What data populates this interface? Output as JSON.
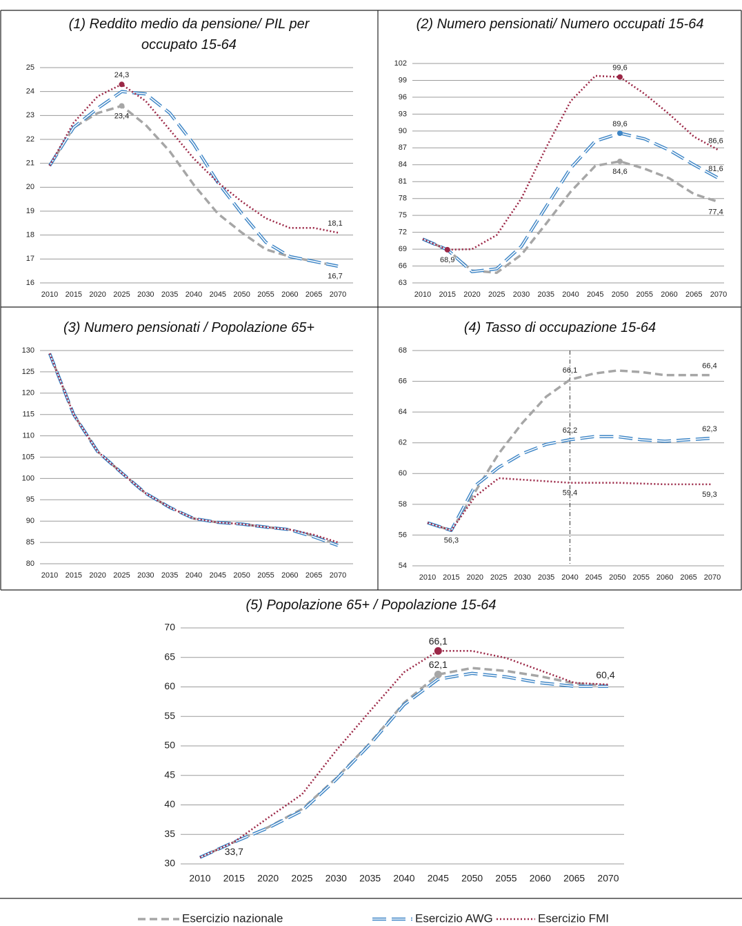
{
  "legend": {
    "items": [
      {
        "name": "Esercizio nazionale",
        "color": "#a6a6a6",
        "style": "dashed"
      },
      {
        "name": "Esercizio AWG",
        "color": "#3d85c6",
        "style": "double-dashed"
      },
      {
        "name": "Esercizio FMI",
        "color": "#9b2746",
        "style": "dotted"
      }
    ]
  },
  "chart_data": [
    {
      "type": "line",
      "title": "(1) Reddito medio da pensione/ PIL per occupato 15-64",
      "categories": [
        "2010",
        "2015",
        "2020",
        "2025",
        "2030",
        "2035",
        "2040",
        "2045",
        "2050",
        "2055",
        "2060",
        "2065",
        "2070"
      ],
      "ylim": [
        16,
        25
      ],
      "yticks": [
        16,
        17,
        18,
        19,
        20,
        21,
        22,
        23,
        24,
        25
      ],
      "grid": true,
      "series": [
        {
          "values": [
            20.9,
            22.5,
            23.1,
            23.4,
            22.6,
            21.5,
            20.1,
            18.9,
            18.1,
            17.4,
            17.1,
            16.9,
            16.7
          ],
          "value_labels": [
            null,
            null,
            null,
            "23,4",
            null,
            null,
            null,
            null,
            null,
            null,
            null,
            null,
            null
          ],
          "markers": [
            3
          ]
        },
        {
          "values": [
            20.9,
            22.5,
            23.3,
            24.0,
            23.9,
            23.1,
            21.8,
            20.2,
            18.9,
            17.7,
            17.1,
            16.9,
            16.7
          ],
          "value_labels": [
            null,
            null,
            null,
            null,
            null,
            null,
            null,
            null,
            null,
            null,
            null,
            null,
            "16,7"
          ],
          "markers": []
        },
        {
          "values": [
            20.9,
            22.7,
            23.8,
            24.3,
            23.6,
            22.4,
            21.2,
            20.2,
            19.4,
            18.7,
            18.3,
            18.3,
            18.1
          ],
          "value_labels": [
            null,
            null,
            null,
            "24,3",
            null,
            null,
            null,
            null,
            null,
            null,
            null,
            null,
            "18,1"
          ],
          "markers": [
            3
          ]
        }
      ]
    },
    {
      "type": "line",
      "title": "(2) Numero pensionati/ Numero occupati 15-64",
      "categories": [
        "2010",
        "2015",
        "2020",
        "2025",
        "2030",
        "2035",
        "2040",
        "2045",
        "2050",
        "2055",
        "2060",
        "2065",
        "2070"
      ],
      "ylim": [
        63,
        102
      ],
      "yticks": [
        63,
        66,
        69,
        72,
        75,
        78,
        81,
        84,
        87,
        90,
        93,
        96,
        99,
        102
      ],
      "grid": true,
      "series": [
        {
          "values": [
            70.8,
            68.9,
            65.2,
            64.8,
            68.0,
            73.5,
            79.2,
            83.8,
            84.6,
            83.3,
            81.6,
            78.8,
            77.4
          ],
          "value_labels": [
            null,
            null,
            null,
            null,
            null,
            null,
            null,
            null,
            "84,6",
            null,
            null,
            null,
            "77,4"
          ],
          "markers": [
            8
          ]
        },
        {
          "values": [
            70.8,
            68.9,
            65.0,
            65.5,
            69.5,
            76.5,
            83.4,
            88.2,
            89.6,
            88.6,
            86.6,
            84.0,
            81.6
          ],
          "value_labels": [
            null,
            null,
            null,
            null,
            null,
            null,
            null,
            null,
            "89,6",
            null,
            null,
            null,
            "81,6"
          ],
          "markers": [
            8
          ]
        },
        {
          "values": [
            70.8,
            68.9,
            69.0,
            71.5,
            78.0,
            87.0,
            95.3,
            99.8,
            99.6,
            96.6,
            93.0,
            89.0,
            86.6
          ],
          "value_labels": [
            null,
            "68,9",
            null,
            null,
            null,
            null,
            null,
            null,
            "99,6",
            null,
            null,
            null,
            "86,6"
          ],
          "markers": [
            1,
            8
          ]
        }
      ]
    },
    {
      "type": "line",
      "title": "(3) Numero pensionati / Popolazione 65+",
      "categories": [
        "2010",
        "2015",
        "2020",
        "2025",
        "2030",
        "2035",
        "2040",
        "2045",
        "2050",
        "2055",
        "2060",
        "2065",
        "2070"
      ],
      "ylim": [
        80,
        130
      ],
      "yticks": [
        80,
        85,
        90,
        95,
        100,
        105,
        110,
        115,
        120,
        125,
        130
      ],
      "grid": true,
      "series": [
        {
          "values": [
            129.3,
            115.0,
            106.3,
            101.3,
            96.5,
            93.2,
            90.6,
            89.7,
            89.3,
            88.6,
            88.0,
            86.5,
            84.5
          ],
          "value_labels": [
            null,
            null,
            null,
            null,
            null,
            null,
            null,
            null,
            null,
            null,
            null,
            null,
            null
          ],
          "markers": []
        },
        {
          "values": [
            129.3,
            115.0,
            106.3,
            101.3,
            96.5,
            93.2,
            90.6,
            89.7,
            89.3,
            88.6,
            88.0,
            86.3,
            84.3
          ],
          "value_labels": [
            null,
            null,
            null,
            null,
            null,
            null,
            null,
            null,
            null,
            null,
            null,
            null,
            null
          ],
          "markers": []
        },
        {
          "values": [
            129.3,
            115.0,
            106.3,
            101.3,
            96.5,
            93.2,
            90.6,
            89.7,
            89.3,
            88.6,
            88.0,
            86.8,
            85.0
          ],
          "value_labels": [
            null,
            null,
            null,
            null,
            null,
            null,
            null,
            null,
            null,
            null,
            null,
            null,
            null
          ],
          "markers": []
        }
      ]
    },
    {
      "type": "line",
      "title": "(4) Tasso di occupazione 15-64",
      "categories": [
        "2010",
        "2015",
        "2020",
        "2025",
        "2030",
        "2035",
        "2040",
        "2045",
        "2050",
        "2055",
        "2060",
        "2065",
        "2070"
      ],
      "ylim": [
        54,
        68
      ],
      "yticks": [
        54,
        56,
        58,
        60,
        62,
        64,
        66,
        68
      ],
      "grid": true,
      "vline": "2040",
      "series": [
        {
          "values": [
            56.8,
            56.3,
            58.8,
            61.3,
            63.3,
            65.0,
            66.1,
            66.5,
            66.7,
            66.6,
            66.4,
            66.4,
            66.4
          ],
          "value_labels": [
            null,
            "56,3",
            null,
            null,
            null,
            null,
            "66,1",
            null,
            null,
            null,
            null,
            null,
            "66,4"
          ],
          "markers": []
        },
        {
          "values": [
            56.8,
            56.3,
            59.2,
            60.4,
            61.3,
            61.9,
            62.2,
            62.4,
            62.4,
            62.2,
            62.1,
            62.2,
            62.3
          ],
          "value_labels": [
            null,
            null,
            null,
            null,
            null,
            null,
            "62,2",
            null,
            null,
            null,
            null,
            null,
            "62,3"
          ],
          "markers": []
        },
        {
          "values": [
            56.8,
            56.3,
            58.5,
            59.7,
            59.6,
            59.5,
            59.4,
            59.4,
            59.4,
            59.35,
            59.3,
            59.3,
            59.3
          ],
          "value_labels": [
            null,
            null,
            null,
            null,
            null,
            null,
            "59,4",
            null,
            null,
            null,
            null,
            null,
            "59,3"
          ],
          "markers": []
        }
      ]
    },
    {
      "type": "line",
      "title": "(5) Popolazione 65+ / Popolazione 15-64",
      "categories": [
        "2010",
        "2015",
        "2020",
        "2025",
        "2030",
        "2035",
        "2040",
        "2045",
        "2050",
        "2055",
        "2060",
        "2065",
        "2070"
      ],
      "ylim": [
        30,
        70
      ],
      "yticks": [
        30,
        35,
        40,
        45,
        50,
        55,
        60,
        65,
        70
      ],
      "grid": true,
      "series": [
        {
          "values": [
            31.1,
            33.7,
            36.2,
            39.3,
            44.5,
            50.5,
            57.3,
            62.1,
            63.2,
            62.7,
            61.8,
            60.6,
            60.2
          ],
          "value_labels": [
            null,
            null,
            null,
            null,
            null,
            null,
            null,
            "62,1",
            null,
            null,
            null,
            null,
            null
          ],
          "markers": [
            7
          ]
        },
        {
          "values": [
            31.1,
            33.7,
            36.1,
            39.0,
            44.3,
            50.3,
            57.0,
            61.3,
            62.3,
            61.7,
            60.7,
            60.1,
            60.1
          ],
          "value_labels": [
            null,
            null,
            null,
            null,
            null,
            null,
            null,
            null,
            null,
            null,
            null,
            null,
            null
          ],
          "markers": []
        },
        {
          "values": [
            31.1,
            33.7,
            37.8,
            41.8,
            49.2,
            55.9,
            62.5,
            66.1,
            66.1,
            64.9,
            62.8,
            60.7,
            60.4
          ],
          "value_labels": [
            null,
            "33,7",
            null,
            null,
            null,
            null,
            null,
            "66,1",
            null,
            null,
            null,
            null,
            "60,4"
          ],
          "markers": [
            7
          ]
        }
      ]
    }
  ]
}
